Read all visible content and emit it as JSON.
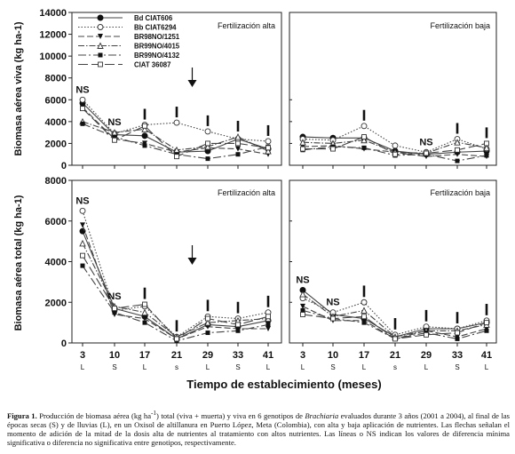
{
  "figure": {
    "xlabel": "Tiempo de establecimiento (meses)",
    "x_ticks": [
      "3",
      "10",
      "17",
      "21",
      "29",
      "33",
      "41"
    ],
    "x_seasons": [
      "L",
      "S",
      "L",
      "s",
      "L",
      "S",
      "L"
    ],
    "caption": {
      "label": "Figura 1.",
      "text_a": " Producción de biomasa aérea (kg ha",
      "sup": "-1",
      "text_b": ") total (viva + muerta) y viva en 6 genotipos de ",
      "genus": "Brachiaria",
      "text_c": " evaluados durante 3 años (2001 a 2004), al final de las épocas secas (S) y de lluvias (L), en un Oxisol de altillanura en Puerto López, Meta (Colombia), con alta y baja aplicación de nutrientes. Las flechas señalan el momento de adición de la mitad de la dosis alta de nutrientes al tratamiento con altos nutrientes. Las líneas o NS indican los valores de diferencia mínima significativa o  diferencia no significativa entre genotipos, respectivamente."
    }
  },
  "chart_data": [
    {
      "type": "line",
      "title": "Fertilización alta",
      "ylabel": "Biomasa aérea viva (kg ha-1)",
      "ylim": [
        0,
        14000
      ],
      "yticks": [
        0,
        2000,
        4000,
        6000,
        8000,
        10000,
        12000,
        14000
      ],
      "x": [
        3,
        10,
        17,
        21,
        29,
        33,
        41
      ],
      "series": [
        {
          "name": "Bd CIAT606",
          "values": [
            5700,
            2800,
            2700,
            1200,
            1300,
            2400,
            1500
          ]
        },
        {
          "name": "Bb CIAT6294",
          "values": [
            6000,
            2900,
            3700,
            3900,
            3100,
            2400,
            2200
          ]
        },
        {
          "name": "BR98NO/1251",
          "values": [
            5300,
            2400,
            2000,
            1200,
            1600,
            1500,
            1000
          ]
        },
        {
          "name": "BR99NO/4015",
          "values": [
            4000,
            3000,
            3300,
            1400,
            1700,
            2600,
            1300
          ]
        },
        {
          "name": "BR99NO/4132",
          "values": [
            3800,
            2600,
            1800,
            1000,
            600,
            1000,
            1700
          ]
        },
        {
          "name": "CIAT 36087",
          "values": [
            5200,
            2300,
            3600,
            800,
            2000,
            2000,
            1600
          ]
        }
      ],
      "annotations": {
        "ns_at": [
          3,
          10
        ],
        "lsd_at": [
          17,
          21,
          29,
          33,
          41
        ],
        "arrow_at": 25
      }
    },
    {
      "type": "line",
      "title": "Fertilización baja",
      "ylim": [
        0,
        14000
      ],
      "x": [
        3,
        10,
        17,
        21,
        29,
        33,
        41
      ],
      "series": [
        {
          "name": "Bd CIAT606",
          "values": [
            2600,
            2500,
            2500,
            1300,
            1000,
            1200,
            1300
          ]
        },
        {
          "name": "Bb CIAT6294",
          "values": [
            2400,
            2300,
            3600,
            1800,
            1200,
            2400,
            1500
          ]
        },
        {
          "name": "BR98NO/1251",
          "values": [
            1700,
            1800,
            1500,
            1200,
            800,
            1000,
            800
          ]
        },
        {
          "name": "BR99NO/4015",
          "values": [
            2100,
            2000,
            2300,
            1200,
            1100,
            2100,
            1600
          ]
        },
        {
          "name": "BR99NO/4132",
          "values": [
            1400,
            1700,
            1600,
            900,
            1000,
            400,
            900
          ]
        },
        {
          "name": "CIAT 36087",
          "values": [
            1500,
            1500,
            2600,
            1000,
            1100,
            1400,
            2000
          ]
        }
      ],
      "annotations": {
        "ns_at": [
          29
        ],
        "lsd_at": [
          17,
          33,
          41
        ]
      }
    },
    {
      "type": "line",
      "title": "Fertilización alta",
      "ylabel": "Biomasa aérea total (kg ha-1)",
      "ylim": [
        0,
        8000
      ],
      "yticks": [
        0,
        2000,
        4000,
        6000,
        8000
      ],
      "x": [
        3,
        10,
        17,
        21,
        29,
        33,
        41
      ],
      "series": [
        {
          "name": "Bd CIAT606",
          "values": [
            5500,
            1700,
            1300,
            200,
            900,
            800,
            1100
          ]
        },
        {
          "name": "Bb CIAT6294",
          "values": [
            6500,
            1600,
            1800,
            300,
            1300,
            1200,
            1500
          ]
        },
        {
          "name": "BR98NO/1251",
          "values": [
            5800,
            1400,
            1200,
            200,
            800,
            700,
            700
          ]
        },
        {
          "name": "BR99NO/4015",
          "values": [
            4900,
            1800,
            1500,
            300,
            1000,
            1100,
            1200
          ]
        },
        {
          "name": "BR99NO/4132",
          "values": [
            3800,
            1500,
            1000,
            100,
            500,
            600,
            900
          ]
        },
        {
          "name": "CIAT 36087",
          "values": [
            4300,
            1700,
            1900,
            200,
            1200,
            900,
            1300
          ]
        }
      ],
      "annotations": {
        "ns_at": [
          3,
          10
        ],
        "lsd_at": [
          17,
          21,
          29,
          33,
          41
        ],
        "arrow_at": 25
      }
    },
    {
      "type": "line",
      "title": "Fertilización baja",
      "ylim": [
        0,
        8000
      ],
      "x": [
        3,
        10,
        17,
        21,
        29,
        33,
        41
      ],
      "series": [
        {
          "name": "Bd CIAT606",
          "values": [
            2600,
            1400,
            1200,
            300,
            700,
            700,
            1000
          ]
        },
        {
          "name": "Bb CIAT6294",
          "values": [
            2200,
            1500,
            2000,
            400,
            800,
            700,
            1100
          ]
        },
        {
          "name": "BR98NO/1251",
          "values": [
            1800,
            1100,
            1100,
            200,
            600,
            300,
            700
          ]
        },
        {
          "name": "BR99NO/4015",
          "values": [
            2400,
            1300,
            1600,
            300,
            600,
            600,
            900
          ]
        },
        {
          "name": "BR99NO/4132",
          "values": [
            1600,
            1200,
            1000,
            200,
            500,
            200,
            600
          ]
        },
        {
          "name": "CIAT 36087",
          "values": [
            1400,
            1200,
            1300,
            200,
            400,
            500,
            1000
          ]
        }
      ],
      "annotations": {
        "ns_at": [
          3,
          10
        ],
        "lsd_at": [
          17,
          21,
          29,
          33,
          41
        ]
      }
    }
  ]
}
